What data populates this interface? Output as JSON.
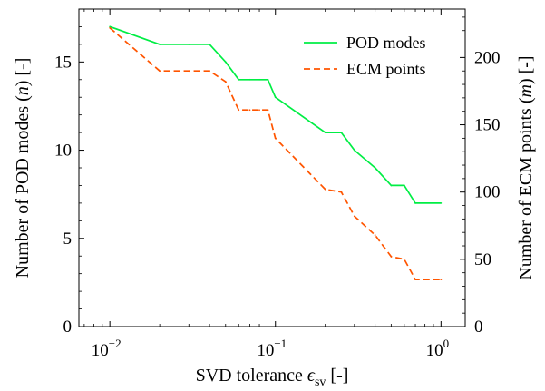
{
  "chart_data": {
    "type": "line",
    "xlabel": "SVD tolerance ϵsv [-]",
    "xlabel_parts": {
      "text": "SVD tolerance ",
      "symbol": "ϵ",
      "subscript": "sv",
      "unit": " [-]"
    },
    "ylabel_left": "Number of POD modes (n) [-]",
    "ylabel_left_parts": {
      "before": "Number of POD modes (",
      "symbol": "n",
      "after": ") [-]"
    },
    "ylabel_right": "Number of ECM points (m) [-]",
    "ylabel_right_parts": {
      "before": "Number of ECM points (",
      "symbol": "m",
      "after": ") [-]"
    },
    "xscale": "log",
    "xlim": [
      0.0065,
      1.4
    ],
    "ylim_left": [
      0,
      18
    ],
    "ylim_right": [
      0,
      236
    ],
    "xticks": [
      {
        "value": 0.01,
        "base": "10",
        "exp": "−2"
      },
      {
        "value": 0.1,
        "base": "10",
        "exp": "−1"
      },
      {
        "value": 1,
        "base": "10",
        "exp": "0"
      }
    ],
    "yticks_left": [
      0,
      5,
      10,
      15
    ],
    "yticks_right": [
      0,
      50,
      100,
      150,
      200
    ],
    "legend_position": "top-right",
    "series": [
      {
        "name": "POD modes",
        "axis": "left",
        "color": "#00ee44",
        "style": "solid",
        "x": [
          0.01,
          0.02,
          0.03,
          0.04,
          0.05,
          0.06,
          0.07,
          0.08,
          0.09,
          0.1,
          0.2,
          0.25,
          0.3,
          0.4,
          0.5,
          0.6,
          0.7,
          1.0
        ],
        "y": [
          17,
          16,
          16,
          16,
          15,
          14,
          14,
          14,
          14,
          13,
          11,
          11,
          10,
          9,
          8,
          8,
          7,
          7
        ]
      },
      {
        "name": "ECM points",
        "axis": "right",
        "color": "#ff5500",
        "style": "dashed",
        "x": [
          0.01,
          0.02,
          0.03,
          0.04,
          0.05,
          0.06,
          0.07,
          0.08,
          0.09,
          0.1,
          0.2,
          0.25,
          0.3,
          0.4,
          0.5,
          0.6,
          0.7,
          1.0
        ],
        "y": [
          222,
          190,
          190,
          190,
          182,
          161,
          161,
          161,
          161,
          140,
          102,
          100,
          82,
          68,
          52,
          50,
          35,
          35
        ]
      }
    ]
  }
}
